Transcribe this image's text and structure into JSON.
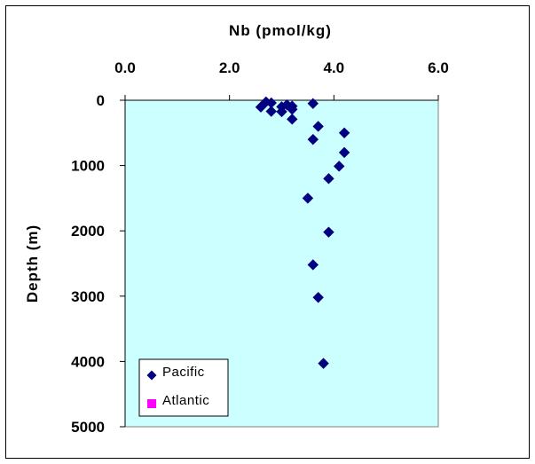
{
  "chart_data": {
    "type": "scatter",
    "title": "Nb (pmol/kg)",
    "xlabel": "Nb (pmol/kg)",
    "ylabel": "Depth (m)",
    "xlim": [
      0,
      6
    ],
    "ylim": [
      0,
      5000
    ],
    "y_reversed": true,
    "x_axis_position": "top",
    "x_ticks": [
      "0.0",
      "2.0",
      "4.0",
      "6.0"
    ],
    "x_tick_values": [
      0,
      2,
      4,
      6
    ],
    "y_ticks": [
      "0",
      "1000",
      "2000",
      "3000",
      "4000",
      "5000"
    ],
    "y_tick_values": [
      0,
      1000,
      2000,
      3000,
      4000,
      5000
    ],
    "plot_background": "#CCFFFF",
    "legend_placement": "bottom-left",
    "series": [
      {
        "name": "Pacific",
        "color": "#000080",
        "marker": "diamond",
        "points": [
          {
            "x": 2.7,
            "y": 25
          },
          {
            "x": 2.8,
            "y": 40
          },
          {
            "x": 2.6,
            "y": 105
          },
          {
            "x": 2.8,
            "y": 170
          },
          {
            "x": 3.0,
            "y": 100
          },
          {
            "x": 3.0,
            "y": 175
          },
          {
            "x": 3.1,
            "y": 70
          },
          {
            "x": 3.2,
            "y": 90
          },
          {
            "x": 3.2,
            "y": 140
          },
          {
            "x": 3.2,
            "y": 290
          },
          {
            "x": 3.6,
            "y": 50
          },
          {
            "x": 3.7,
            "y": 400
          },
          {
            "x": 3.6,
            "y": 600
          },
          {
            "x": 4.2,
            "y": 500
          },
          {
            "x": 4.2,
            "y": 800
          },
          {
            "x": 4.1,
            "y": 1010
          },
          {
            "x": 3.9,
            "y": 1200
          },
          {
            "x": 3.5,
            "y": 1500
          },
          {
            "x": 3.9,
            "y": 2020
          },
          {
            "x": 3.6,
            "y": 2520
          },
          {
            "x": 3.7,
            "y": 3020
          },
          {
            "x": 3.8,
            "y": 4030
          }
        ]
      },
      {
        "name": "Atlantic",
        "color": "#FF00FF",
        "marker": "square",
        "points": []
      }
    ]
  }
}
